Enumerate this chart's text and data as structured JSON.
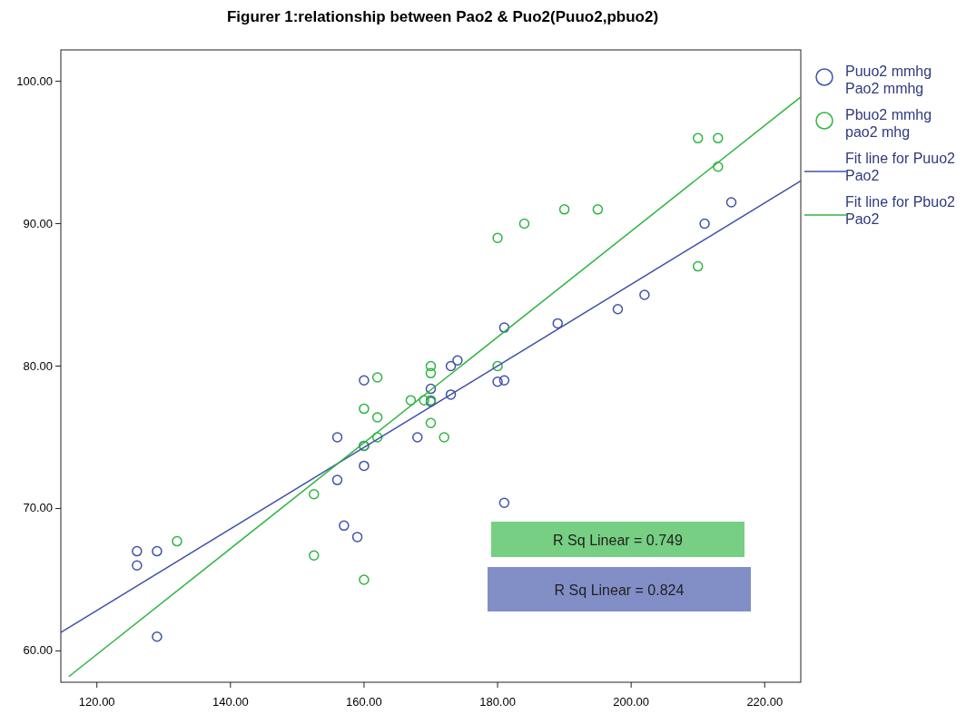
{
  "chart_data": {
    "type": "scatter",
    "title": "Figurer 1:relationship between Pao2  & Puo2(Puuo2,pbuo2)",
    "xlim": [
      114.6,
      225.4
    ],
    "ylim": [
      57.8,
      102.2
    ],
    "xticks": [
      {
        "value": 120,
        "label": "120.00"
      },
      {
        "value": 140,
        "label": "140.00"
      },
      {
        "value": 160,
        "label": "160.00"
      },
      {
        "value": 180,
        "label": "180.00"
      },
      {
        "value": 200,
        "label": "200.00"
      },
      {
        "value": 220,
        "label": "220.00"
      }
    ],
    "yticks": [
      {
        "value": 60,
        "label": "60.00"
      },
      {
        "value": 70,
        "label": "70.00"
      },
      {
        "value": 80,
        "label": "80.00"
      },
      {
        "value": 90,
        "label": "90.00"
      },
      {
        "value": 100,
        "label": "100.00"
      }
    ],
    "marker": "circle",
    "legend": "top right",
    "grid": false,
    "series": [
      {
        "name": "Puuo2 mmhg\nPao2 mmhg",
        "color": "#3f51a8",
        "x": [
          126,
          126,
          129,
          129,
          156,
          156,
          157,
          159,
          160,
          160,
          160,
          168,
          170,
          170,
          173,
          174,
          173,
          180,
          181,
          181,
          181,
          189,
          198,
          202,
          211,
          215
        ],
        "values": [
          67.0,
          66.0,
          67.0,
          61.0,
          75.0,
          72.0,
          68.8,
          68.0,
          79.0,
          74.4,
          73.0,
          75.0,
          78.4,
          77.5,
          80.0,
          80.4,
          78.0,
          78.9,
          79.0,
          82.7,
          70.4,
          83.0,
          84.0,
          85.0,
          90.0,
          91.5
        ]
      },
      {
        "name": "Pbuo2 mmhg\npao2 mhg",
        "color": "#2cb53f",
        "x": [
          132,
          152.5,
          152.5,
          160,
          160,
          162,
          162,
          162,
          160,
          167,
          169,
          170,
          170,
          170,
          170,
          172,
          180,
          180,
          184,
          190,
          195,
          210,
          213,
          213,
          210
        ],
        "values": [
          67.7,
          71.0,
          66.7,
          65.0,
          77.0,
          79.2,
          76.4,
          75.0,
          74.4,
          77.6,
          77.6,
          80.0,
          79.5,
          77.6,
          76.0,
          75.0,
          80.0,
          89.0,
          90.0,
          91.0,
          91.0,
          96.0,
          96.0,
          94.0,
          87.0
        ]
      },
      {
        "name": "Fit line for Puuo2\nPao2",
        "type": "line",
        "marker": "none",
        "color": "#3f51a8",
        "x": [
          114.6,
          225.4
        ],
        "values": [
          61.3,
          93.0
        ]
      },
      {
        "name": "Fit line for Pbuo2\nPao2",
        "type": "line",
        "marker": "none",
        "color": "#2cb53f",
        "x": [
          115.8,
          225.4
        ],
        "values": [
          58.2,
          98.9
        ]
      }
    ],
    "annotations": [
      "R Sq Linear = 0.749",
      "R Sq Linear = 0.824"
    ]
  }
}
